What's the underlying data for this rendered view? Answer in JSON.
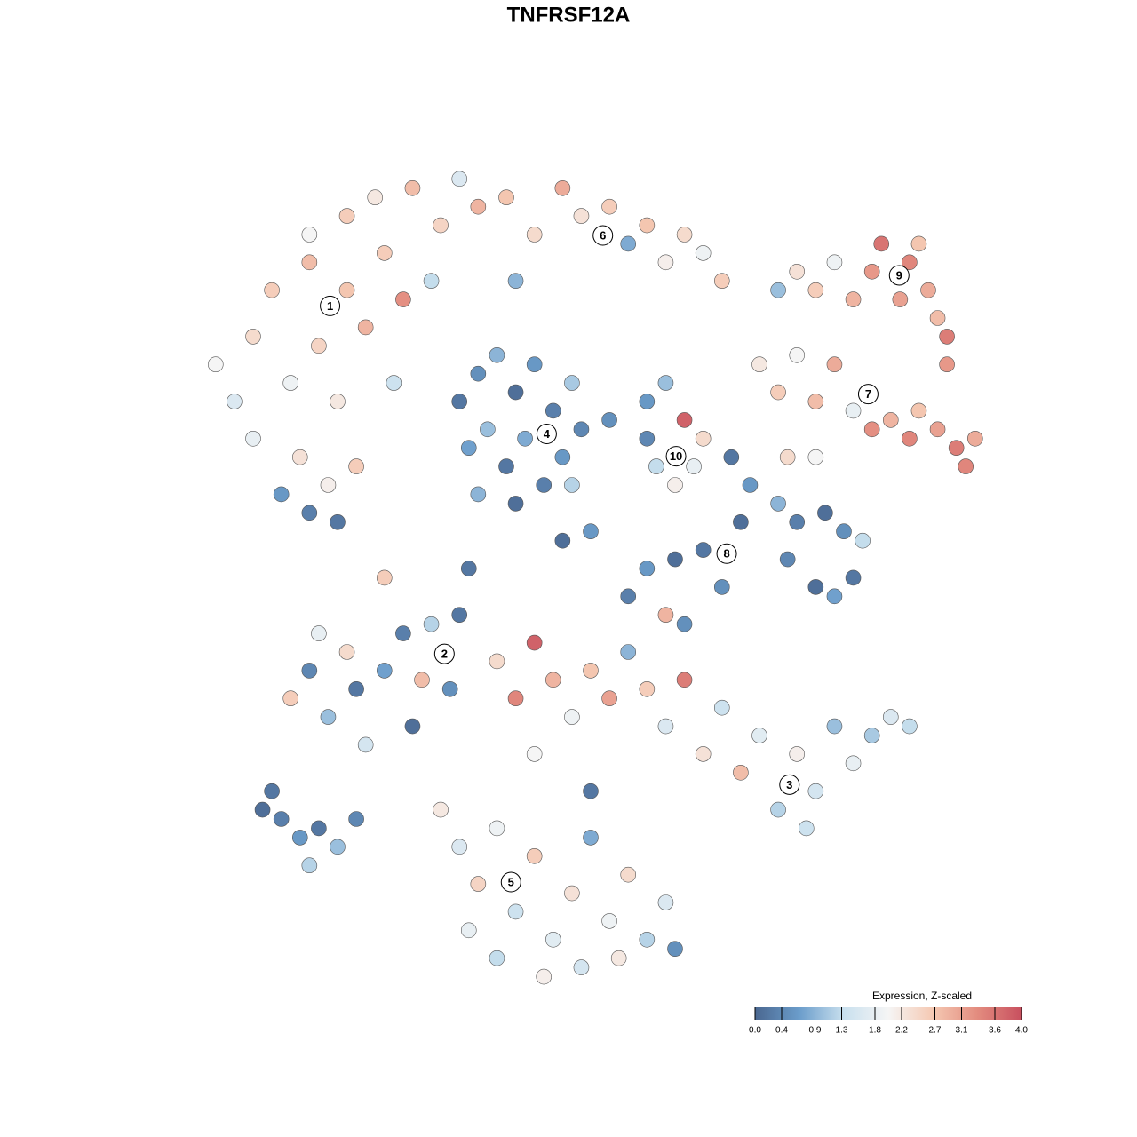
{
  "chart_data": {
    "type": "scatter",
    "title": "TNFRSF12A",
    "xlim": [
      -45,
      45
    ],
    "ylim": [
      -45,
      45
    ],
    "x": [
      -40,
      -38,
      -36,
      -34,
      -32,
      -30,
      -29,
      -27,
      -26,
      -24,
      -22,
      -21,
      -20,
      -31,
      -28,
      -33,
      -30,
      -27,
      -25,
      -36,
      -30,
      -26,
      -23,
      -19,
      -16,
      -14,
      -12,
      -9,
      -6,
      -3,
      -1,
      2,
      4,
      6,
      8,
      10,
      12,
      14,
      -17,
      -8,
      22,
      24,
      26,
      28,
      30,
      31,
      33,
      34,
      35,
      36,
      37,
      38,
      20,
      38,
      18,
      20,
      22,
      24,
      26,
      28,
      30,
      32,
      34,
      35,
      37,
      39,
      41,
      40,
      21,
      24,
      -14,
      -12,
      -10,
      -8,
      -6,
      -4,
      -2,
      -1,
      -13,
      -11,
      -9,
      -7,
      -5,
      -3,
      -12,
      -8,
      -2,
      2,
      6,
      8,
      10,
      12,
      7,
      9,
      11,
      6,
      15,
      17,
      16,
      20,
      22,
      25,
      27,
      29,
      28,
      26,
      24,
      21,
      12,
      9,
      6,
      4,
      8,
      14,
      -32,
      -30,
      -28,
      -26,
      -25,
      -24,
      -22,
      -20,
      -18,
      -17,
      -19,
      -15,
      -14,
      -29,
      -10,
      -8,
      -6,
      -4,
      -2,
      0,
      2,
      4,
      6,
      8,
      10,
      10,
      12,
      14,
      16,
      18,
      20,
      22,
      24,
      26,
      28,
      30,
      32,
      34,
      23,
      -6,
      -16,
      -14,
      -12,
      -10,
      -8,
      -6,
      -4,
      -2,
      0,
      2,
      4,
      6,
      8,
      -13,
      -10,
      -5,
      -1,
      3,
      9,
      0,
      -35,
      -33,
      -31,
      -29,
      -27,
      -25,
      -30,
      -34,
      -22,
      -13,
      0,
      -3
    ],
    "y": [
      22,
      18,
      25,
      30,
      20,
      33,
      24,
      18,
      30,
      26,
      34,
      20,
      29,
      12,
      9,
      8,
      6,
      5,
      11,
      14,
      36,
      38,
      40,
      41,
      37,
      42,
      39,
      40,
      36,
      41,
      38,
      39,
      35,
      37,
      33,
      36,
      34,
      31,
      31,
      31,
      32,
      30,
      33,
      29,
      32,
      35,
      29,
      33,
      35,
      30,
      27,
      25,
      30,
      22,
      22,
      19,
      23,
      18,
      22,
      17,
      15,
      16,
      14,
      17,
      15,
      13,
      14,
      11,
      12,
      12,
      18,
      21,
      23,
      19,
      22,
      17,
      20,
      15,
      13,
      15,
      11,
      14,
      9,
      12,
      8,
      7,
      9,
      16,
      18,
      20,
      16,
      14,
      11,
      9,
      11,
      14,
      12,
      9,
      5,
      7,
      5,
      6,
      4,
      3,
      -1,
      -3,
      -2,
      1,
      2,
      1,
      0,
      -3,
      -5,
      -2,
      -14,
      -11,
      -16,
      -9,
      -13,
      -19,
      -11,
      -7,
      -12,
      -6,
      -17,
      -13,
      -5,
      -7,
      -10,
      -14,
      -8,
      -12,
      -16,
      -11,
      -14,
      -9,
      -13,
      -17,
      -12,
      -6,
      -20,
      -15,
      -22,
      -18,
      -26,
      -20,
      -24,
      -17,
      -21,
      -18,
      -16,
      -17,
      -28,
      -20,
      -26,
      -30,
      -34,
      -28,
      -37,
      -31,
      -40,
      -35,
      -29,
      -38,
      -33,
      -40,
      -36,
      -39,
      -42,
      -44,
      -43,
      -42,
      -41,
      -24,
      -26,
      -27,
      -29,
      -28,
      -30,
      -27,
      -32,
      -24,
      -1,
      0,
      4,
      3
    ],
    "values": [
      2.0,
      1.6,
      2.4,
      2.6,
      1.9,
      2.8,
      2.5,
      2.2,
      2.7,
      2.9,
      2.6,
      1.4,
      3.3,
      2.3,
      2.1,
      0.6,
      0.3,
      0.2,
      2.6,
      1.8,
      2.0,
      2.6,
      2.2,
      2.8,
      2.5,
      1.6,
      2.9,
      2.7,
      2.4,
      3.0,
      2.3,
      2.6,
      0.8,
      2.7,
      2.1,
      2.4,
      1.9,
      2.6,
      1.3,
      0.9,
      2.3,
      2.6,
      1.9,
      2.9,
      3.2,
      3.6,
      3.1,
      3.4,
      2.7,
      3.0,
      2.8,
      3.5,
      1.0,
      3.2,
      2.2,
      2.6,
      2.0,
      2.8,
      3.0,
      1.8,
      3.3,
      2.9,
      3.4,
      2.7,
      3.1,
      3.5,
      3.0,
      3.4,
      2.4,
      2.0,
      0.2,
      0.5,
      0.9,
      0.1,
      0.6,
      0.3,
      1.1,
      0.4,
      0.7,
      1.0,
      0.2,
      0.8,
      0.3,
      0.6,
      0.9,
      0.1,
      1.2,
      0.5,
      0.6,
      1.0,
      3.8,
      2.4,
      1.3,
      2.1,
      1.8,
      0.4,
      0.2,
      0.6,
      0.1,
      0.9,
      0.3,
      0.1,
      0.5,
      1.3,
      0.2,
      0.7,
      0.1,
      0.4,
      0.2,
      0.1,
      0.6,
      0.3,
      2.9,
      0.5,
      2.6,
      0.4,
      1.0,
      2.4,
      0.2,
      1.5,
      0.7,
      0.3,
      2.8,
      1.2,
      0.1,
      0.5,
      0.2,
      1.8,
      2.4,
      3.4,
      3.8,
      2.9,
      1.9,
      2.7,
      3.1,
      0.9,
      2.6,
      1.6,
      3.5,
      0.5,
      2.3,
      1.4,
      2.8,
      1.7,
      1.2,
      2.1,
      1.5,
      1.0,
      1.8,
      1.1,
      1.6,
      1.3,
      1.4,
      2.0,
      2.2,
      1.6,
      2.5,
      1.9,
      1.4,
      2.6,
      1.7,
      2.3,
      0.8,
      1.9,
      2.4,
      1.2,
      1.6,
      1.8,
      1.3,
      2.1,
      1.5,
      2.2,
      0.5,
      0.2,
      0.1,
      0.3,
      0.6,
      0.2,
      1.0,
      0.4,
      1.2,
      0.2,
      2.6,
      0.2,
      0.6,
      0.1
    ],
    "clusters": [
      {
        "label": "1",
        "x": -27.8,
        "y": 28.3
      },
      {
        "label": "2",
        "x": -15.6,
        "y": -9.2
      },
      {
        "label": "3",
        "x": 21.2,
        "y": -23.3
      },
      {
        "label": "4",
        "x": -4.7,
        "y": 14.5
      },
      {
        "label": "5",
        "x": -8.5,
        "y": -33.8
      },
      {
        "label": "6",
        "x": 1.3,
        "y": 35.9
      },
      {
        "label": "7",
        "x": 29.6,
        "y": 18.8
      },
      {
        "label": "8",
        "x": 14.5,
        "y": 1.6
      },
      {
        "label": "9",
        "x": 32.9,
        "y": 31.6
      },
      {
        "label": "10",
        "x": 9.1,
        "y": 12.1
      }
    ],
    "colorbar": {
      "title": "Expression, Z-scaled",
      "clim": [
        0,
        4
      ],
      "ticks": [
        {
          "value": 0,
          "label": "0.0"
        },
        0.4,
        0.9,
        1.3,
        1.8,
        2.2,
        2.7,
        3.1,
        3.6,
        {
          "value": 4,
          "label": "4.0"
        }
      ],
      "colors": [
        "#4a6790",
        "#6b9dcb",
        "#c9e0ee",
        "#f5f5f5",
        "#f5c9b3",
        "#e38c7f",
        "#c8505f"
      ]
    }
  }
}
